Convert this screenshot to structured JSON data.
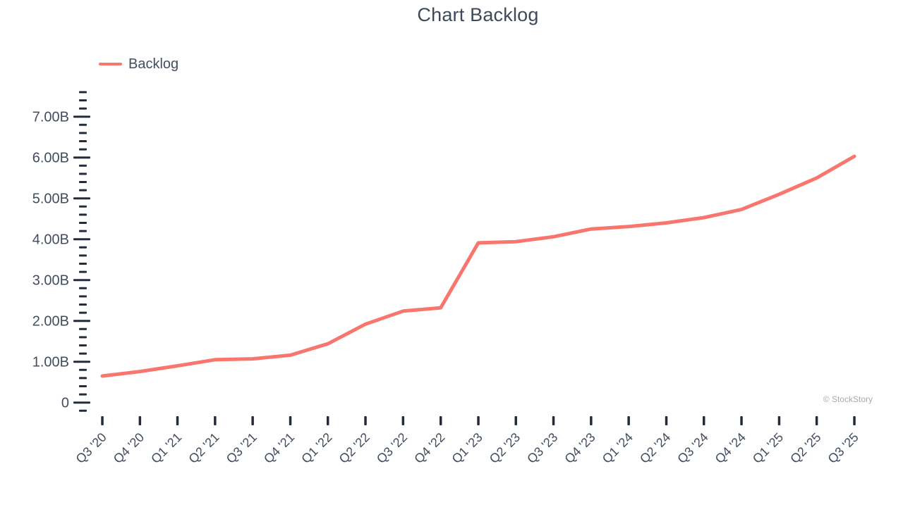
{
  "title": "Chart Backlog",
  "legend": {
    "label": "Backlog",
    "color": "#f9766e"
  },
  "watermark": "© StockStory",
  "colors": {
    "line": "#f9766e",
    "label_text": "#424d5f",
    "tick_mark": "#242c39",
    "watermark": "#a6a9ae"
  },
  "chart_data": {
    "type": "line",
    "title": "Chart Backlog",
    "categories": [
      "Q3 '20",
      "Q4 '20",
      "Q1 '21",
      "Q2 '21",
      "Q3 '21",
      "Q4 '21",
      "Q1 '22",
      "Q2 '22",
      "Q3 '22",
      "Q4 '22",
      "Q1 '23",
      "Q2 '23",
      "Q3 '23",
      "Q4 '23",
      "Q1 '24",
      "Q2 '24",
      "Q3 '24",
      "Q4 '24",
      "Q1 '25",
      "Q2 '25",
      "Q3 '25"
    ],
    "series": [
      {
        "name": "Backlog",
        "color": "#f9766e",
        "values": [
          0.65,
          0.76,
          0.9,
          1.05,
          1.07,
          1.16,
          1.44,
          1.92,
          2.24,
          2.32,
          3.91,
          3.94,
          4.06,
          4.25,
          4.31,
          4.4,
          4.53,
          4.73,
          5.1,
          5.5,
          6.03
        ]
      }
    ],
    "unit": "B",
    "xlabel": "",
    "ylabel": "",
    "grid": false,
    "legend_position": "top-left",
    "y_axis": {
      "min": 0,
      "max": 7.6,
      "major_ticks": [
        {
          "value": 0,
          "label": "0"
        },
        {
          "value": 1,
          "label": "1.00B"
        },
        {
          "value": 2,
          "label": "2.00B"
        },
        {
          "value": 3,
          "label": "3.00B"
        },
        {
          "value": 4,
          "label": "4.00B"
        },
        {
          "value": 5,
          "label": "5.00B"
        },
        {
          "value": 6,
          "label": "6.00B"
        },
        {
          "value": 7,
          "label": "7.00B"
        }
      ],
      "minor_tick_step": 0.2,
      "minor_tick_min": -0.2,
      "minor_tick_max": 7.6
    }
  }
}
